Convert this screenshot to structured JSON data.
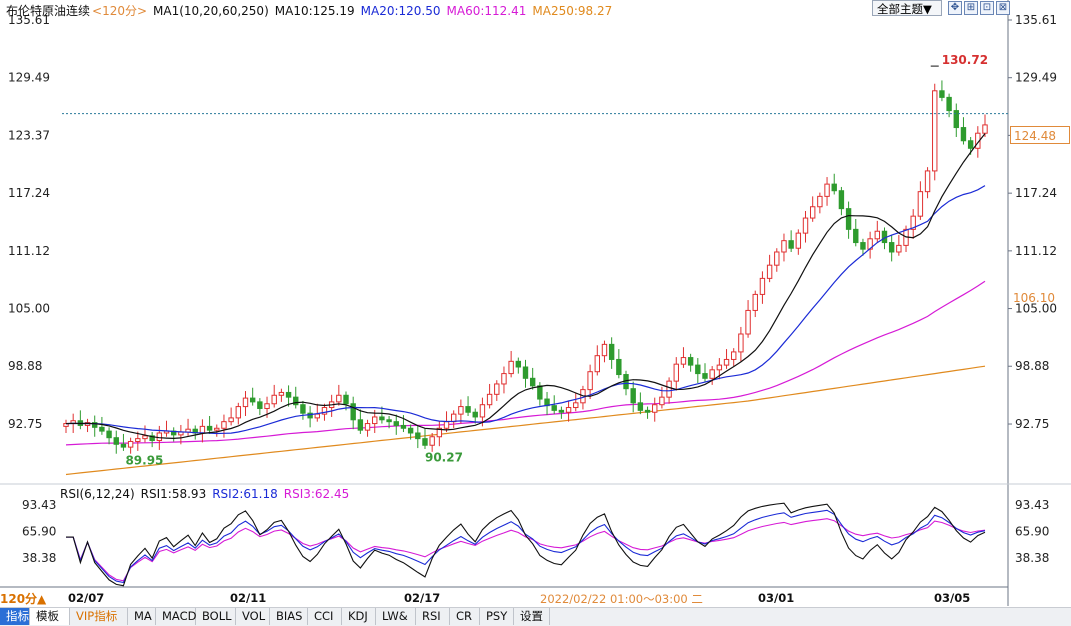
{
  "header": {
    "instrument": "布伦特原油连续",
    "period": "<120分>",
    "ma1": "MA1(10,20,60,250)",
    "ma10": "MA10:125.19",
    "ma20": "MA20:120.50",
    "ma60": "MA60:112.41",
    "ma250": "MA250:98.27",
    "theme_button": "全部主题▼"
  },
  "toolbar": {
    "icons": [
      "expand-icon",
      "crosshair-icon",
      "pin-icon",
      "close-icon"
    ]
  },
  "price_axis": {
    "ticks": [
      "135.61",
      "129.49",
      "123.37",
      "117.24",
      "111.12",
      "105.00",
      "98.88",
      "92.75"
    ],
    "last_price": "124.48",
    "ma60_price": "106.10"
  },
  "annotations": {
    "high": "130.72",
    "low1": "89.95",
    "low2": "90.27"
  },
  "rsi": {
    "title": "RSI(6,12,24)",
    "rsi1": "RSI1:58.93",
    "rsi2": "RSI2:61.18",
    "rsi3": "RSI3:62.45",
    "ticks": [
      "93.43",
      "65.90",
      "38.38"
    ]
  },
  "time_axis": {
    "period_tag": "120分▲",
    "dates": [
      "02/07",
      "02/11",
      "02/17",
      "03/01",
      "03/05"
    ],
    "cursor_time": "2022/02/22 01:00～03:00 二"
  },
  "bottom_tabs": [
    "指标",
    "模板",
    "VIP指标",
    "MA",
    "MACD",
    "BOLL",
    "VOL",
    "BIAS",
    "CCI",
    "KDJ",
    "LW&",
    "RSI",
    "CR",
    "PSY",
    "设置"
  ],
  "colors": {
    "up": "#e03030",
    "down": "#2e9b2e",
    "ma10": "#111111",
    "ma20": "#1b2bd6",
    "ma60": "#d61bd6",
    "ma250": "#e08a1e",
    "accent_orange": "#e08a3a"
  },
  "chart_data": {
    "type": "candlestick",
    "period": "120分",
    "price_range": [
      86.6,
      135.61
    ],
    "rsi_range": [
      10,
      93.43
    ],
    "closes": [
      92.8,
      93.1,
      92.6,
      92.9,
      92.4,
      92.0,
      91.3,
      90.6,
      90.3,
      90.9,
      91.2,
      91.5,
      91.0,
      91.8,
      92.0,
      91.6,
      91.9,
      92.2,
      91.8,
      92.5,
      92.1,
      92.3,
      93.0,
      93.4,
      94.6,
      95.5,
      95.1,
      94.4,
      94.9,
      95.8,
      96.1,
      95.6,
      94.8,
      93.9,
      93.4,
      93.8,
      94.5,
      95.1,
      95.8,
      94.9,
      93.2,
      92.1,
      92.8,
      93.5,
      93.2,
      93.0,
      92.6,
      92.3,
      91.8,
      91.2,
      90.5,
      91.4,
      92.3,
      93.0,
      93.8,
      94.6,
      94.0,
      93.5,
      94.8,
      95.9,
      97.0,
      98.1,
      99.4,
      98.8,
      97.6,
      96.8,
      95.4,
      94.7,
      94.2,
      94.0,
      94.5,
      95.0,
      96.4,
      98.3,
      100.0,
      101.2,
      99.6,
      98.0,
      96.5,
      95.0,
      94.2,
      94.0,
      94.8,
      95.6,
      97.3,
      99.1,
      99.8,
      99.0,
      98.1,
      97.6,
      98.5,
      99.0,
      99.6,
      100.4,
      102.3,
      104.8,
      106.5,
      108.2,
      109.6,
      111.0,
      112.2,
      111.4,
      113.0,
      114.6,
      115.8,
      116.9,
      118.2,
      117.5,
      115.6,
      113.4,
      112.0,
      111.3,
      112.4,
      113.2,
      112.0,
      111.0,
      111.7,
      113.4,
      114.8,
      117.4,
      119.6,
      128.1,
      127.4,
      126.0,
      124.2,
      122.8,
      122.0,
      123.6,
      124.48
    ]
  }
}
